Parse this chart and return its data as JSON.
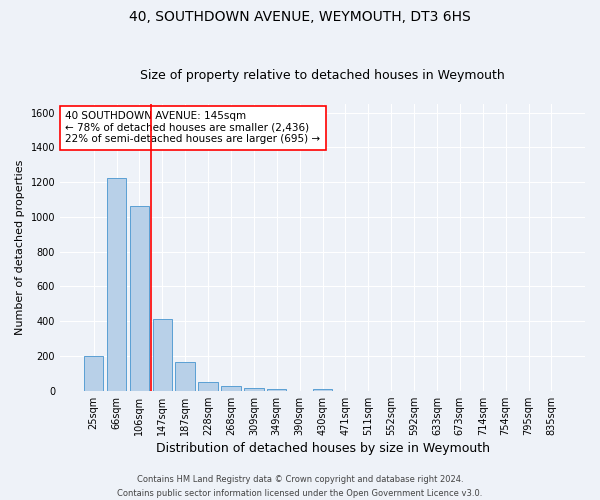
{
  "title": "40, SOUTHDOWN AVENUE, WEYMOUTH, DT3 6HS",
  "subtitle": "Size of property relative to detached houses in Weymouth",
  "xlabel": "Distribution of detached houses by size in Weymouth",
  "ylabel": "Number of detached properties",
  "categories": [
    "25sqm",
    "66sqm",
    "106sqm",
    "147sqm",
    "187sqm",
    "228sqm",
    "268sqm",
    "309sqm",
    "349sqm",
    "390sqm",
    "430sqm",
    "471sqm",
    "511sqm",
    "552sqm",
    "592sqm",
    "633sqm",
    "673sqm",
    "714sqm",
    "754sqm",
    "795sqm",
    "835sqm"
  ],
  "values": [
    200,
    1225,
    1065,
    410,
    165,
    52,
    25,
    15,
    10,
    0,
    10,
    0,
    0,
    0,
    0,
    0,
    0,
    0,
    0,
    0,
    0
  ],
  "bar_color": "#b8d0e8",
  "bar_edge_color": "#5a9fd4",
  "annotation_box_text": "40 SOUTHDOWN AVENUE: 145sqm\n← 78% of detached houses are smaller (2,436)\n22% of semi-detached houses are larger (695) →",
  "footer_line1": "Contains HM Land Registry data © Crown copyright and database right 2024.",
  "footer_line2": "Contains public sector information licensed under the Open Government Licence v3.0.",
  "bg_color": "#eef2f8",
  "ylim": [
    0,
    1650
  ],
  "title_fontsize": 10,
  "subtitle_fontsize": 9,
  "xlabel_fontsize": 9,
  "ylabel_fontsize": 8,
  "tick_fontsize": 7,
  "footer_fontsize": 6,
  "annot_fontsize": 7.5
}
